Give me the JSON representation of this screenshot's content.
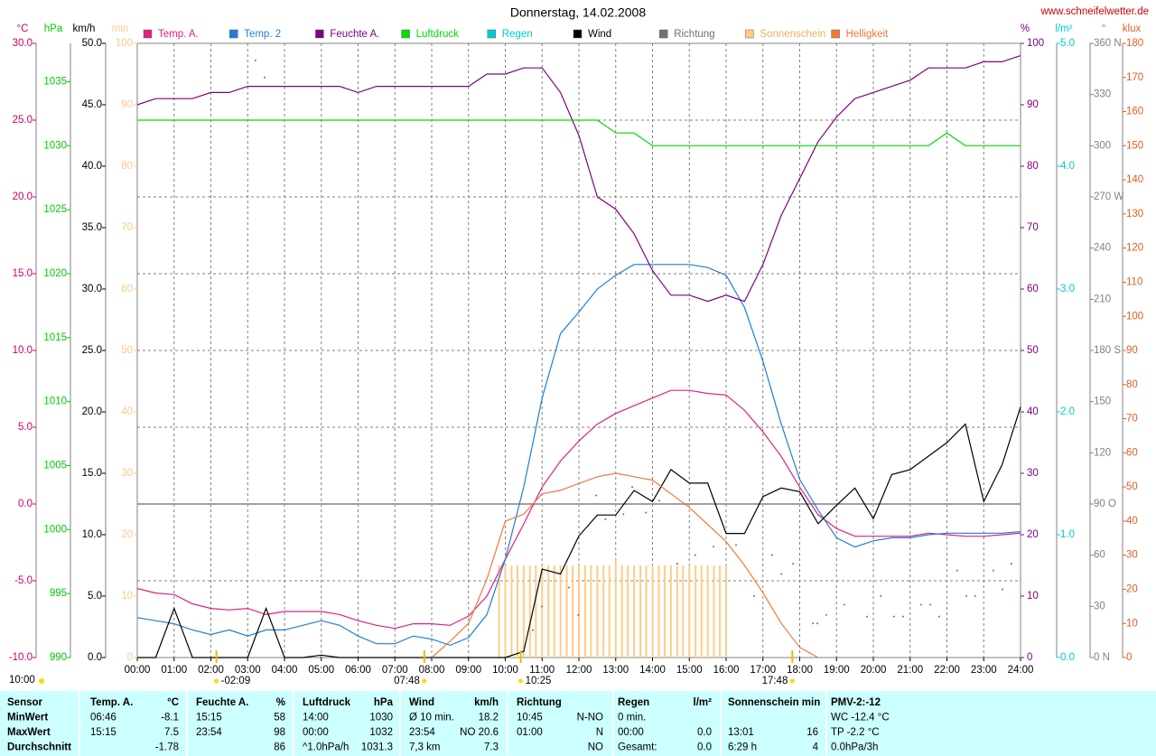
{
  "chart_data": {
    "type": "line",
    "title": "Donnerstag, 14.02.2008",
    "source": "www.schneifelwetter.de",
    "corner_label": "10:00",
    "xlim": [
      0,
      24
    ],
    "grid": true,
    "xticks": [
      {
        "value": 0,
        "label": "00:00"
      },
      {
        "value": 1,
        "label": "01:00"
      },
      {
        "value": 2,
        "label": "02:00"
      },
      {
        "value": 3,
        "label": "03:00"
      },
      {
        "value": 4,
        "label": "04:00"
      },
      {
        "value": 5,
        "label": "05:00"
      },
      {
        "value": 6,
        "label": "06:00"
      },
      {
        "value": 7,
        "label": "07:00"
      },
      {
        "value": 8,
        "label": "08:00"
      },
      {
        "value": 9,
        "label": "09:00"
      },
      {
        "value": 10,
        "label": "10:00"
      },
      {
        "value": 11,
        "label": "11:00"
      },
      {
        "value": 12,
        "label": "12:00"
      },
      {
        "value": 13,
        "label": "13:00"
      },
      {
        "value": 14,
        "label": "14:00"
      },
      {
        "value": 15,
        "label": "15:00"
      },
      {
        "value": 16,
        "label": "16:00"
      },
      {
        "value": 17,
        "label": "17:00"
      },
      {
        "value": 18,
        "label": "18:00"
      },
      {
        "value": 19,
        "label": "19:00"
      },
      {
        "value": 20,
        "label": "20:00"
      },
      {
        "value": 21,
        "label": "21:00"
      },
      {
        "value": 22,
        "label": "22:00"
      },
      {
        "value": 23,
        "label": "23:00"
      },
      {
        "value": 24,
        "label": "24:00"
      }
    ],
    "x": [
      0,
      0.5,
      1,
      1.5,
      2,
      2.5,
      3,
      3.5,
      4,
      4.5,
      5,
      5.5,
      6,
      6.5,
      7,
      7.5,
      8,
      8.5,
      9,
      9.5,
      10,
      10.5,
      11,
      11.5,
      12,
      12.5,
      13,
      13.5,
      14,
      14.5,
      15,
      15.5,
      16,
      16.5,
      17,
      17.5,
      18,
      18.5,
      19,
      19.5,
      20,
      20.5,
      21,
      21.5,
      22,
      22.5,
      23,
      23.5,
      24
    ],
    "axes": [
      {
        "title": "°C",
        "color": "#cc0066",
        "ylim": [
          -10,
          30
        ],
        "yticks": [
          {
            "value": -10,
            "label": "-10.0"
          },
          {
            "value": -5,
            "label": "-5.0"
          },
          {
            "value": 0,
            "label": "0.0"
          },
          {
            "value": 5,
            "label": "5.0"
          },
          {
            "value": 10,
            "label": "10.0"
          },
          {
            "value": 15,
            "label": "15.0"
          },
          {
            "value": 20,
            "label": "20.0"
          },
          {
            "value": 25,
            "label": "25.0"
          },
          {
            "value": 30,
            "label": "30.0"
          }
        ]
      },
      {
        "title": "hPa",
        "color": "#00cc00",
        "ylim": [
          990,
          1038
        ],
        "yticks": [
          990,
          995,
          1000,
          1005,
          1010,
          1015,
          1020,
          1025,
          1030,
          1035
        ]
      },
      {
        "title": "km/h",
        "color": "#000000",
        "ylim": [
          0,
          50
        ],
        "yticks": [
          {
            "value": 0,
            "label": "0.0"
          },
          {
            "value": 5,
            "label": "5.0"
          },
          {
            "value": 10,
            "label": "10.0"
          },
          {
            "value": 15,
            "label": "15.0"
          },
          {
            "value": 20,
            "label": "20.0"
          },
          {
            "value": 25,
            "label": "25.0"
          },
          {
            "value": 30,
            "label": "30.0"
          },
          {
            "value": 35,
            "label": "35.0"
          },
          {
            "value": 40,
            "label": "40.0"
          },
          {
            "value": 45,
            "label": "45.0"
          },
          {
            "value": 50,
            "label": "50.0"
          }
        ]
      },
      {
        "title": "min",
        "color": "#ffc890",
        "ylim": [
          0,
          100
        ],
        "yticks": [
          0,
          10,
          20,
          30,
          40,
          50,
          60,
          70,
          80,
          90,
          100
        ]
      },
      {
        "title": "%",
        "color": "#800080",
        "ylim": [
          0,
          100
        ],
        "yticks": [
          0,
          10,
          20,
          30,
          40,
          50,
          60,
          70,
          80,
          90,
          100
        ]
      },
      {
        "title": "l/m²",
        "color": "#00cccc",
        "ylim": [
          0,
          5
        ],
        "yticks": [
          {
            "value": 0,
            "label": "0.0"
          },
          {
            "value": 1,
            "label": "1.0"
          },
          {
            "value": 2,
            "label": "2.0"
          },
          {
            "value": 3,
            "label": "3.0"
          },
          {
            "value": 4,
            "label": "4.0"
          },
          {
            "value": 5,
            "label": "5.0"
          }
        ]
      },
      {
        "title": "°",
        "color": "#808080",
        "ylim": [
          0,
          360
        ],
        "yticks": [
          {
            "value": 0,
            "label": "0 N"
          },
          30,
          60,
          {
            "value": 90,
            "label": "90 O"
          },
          120,
          150,
          {
            "value": 180,
            "label": "180 S"
          },
          210,
          240,
          {
            "value": 270,
            "label": "270 W"
          },
          300,
          330,
          {
            "value": 360,
            "label": "360 N"
          }
        ]
      },
      {
        "title": "klux",
        "color": "#e06020",
        "ylim": [
          0,
          180
        ],
        "yticks": [
          0,
          10,
          20,
          30,
          40,
          50,
          60,
          70,
          80,
          90,
          100,
          110,
          120,
          130,
          140,
          150,
          160,
          170,
          180
        ]
      }
    ],
    "series": [
      {
        "name": "Temp. A.",
        "color": "#e0207f",
        "type": "line",
        "axis": 0,
        "values": [
          -5.5,
          -5.8,
          -5.9,
          -6.5,
          -6.8,
          -6.9,
          -6.8,
          -7.2,
          -7.0,
          -7.0,
          -7.0,
          -7.2,
          -7.6,
          -7.9,
          -8.1,
          -7.8,
          -7.8,
          -7.9,
          -7.3,
          -6.0,
          -3.6,
          -1.3,
          1.1,
          2.8,
          4.1,
          5.2,
          5.9,
          6.4,
          6.9,
          7.4,
          7.4,
          7.2,
          7.1,
          6.1,
          4.7,
          3.1,
          1.1,
          -0.7,
          -1.6,
          -2.1,
          -2.1,
          -2.1,
          -2.1,
          -1.9,
          -2.0,
          -2.1,
          -2.1,
          -2.0,
          -1.9
        ]
      },
      {
        "name": "Temp. 2",
        "color": "#1e7fd8",
        "type": "line",
        "axis": 0,
        "values": [
          -7.4,
          -7.6,
          -7.8,
          -8.2,
          -8.5,
          -8.2,
          -8.6,
          -8.2,
          -8.2,
          -7.9,
          -7.6,
          -7.9,
          -8.6,
          -9.1,
          -9.1,
          -8.6,
          -8.8,
          -9.2,
          -8.7,
          -7.2,
          -3.6,
          1.1,
          6.9,
          11.1,
          12.5,
          14.0,
          14.9,
          15.6,
          15.6,
          15.6,
          15.6,
          15.4,
          14.9,
          12.8,
          9.3,
          5.2,
          1.6,
          -0.4,
          -2.2,
          -2.8,
          -2.4,
          -2.2,
          -2.2,
          -2.0,
          -1.9,
          -1.9,
          -1.9,
          -1.9,
          -1.8
        ]
      },
      {
        "name": "Feuchte A.",
        "color": "#800080",
        "type": "line",
        "axis": 4,
        "values": [
          90,
          91,
          91,
          91,
          92,
          92,
          93,
          93,
          93,
          93,
          93,
          93,
          92,
          93,
          93,
          93,
          93,
          93,
          93,
          95,
          95,
          96,
          96,
          92,
          85,
          75,
          73,
          69,
          63,
          59,
          59,
          58,
          59,
          58,
          64,
          72,
          78,
          84,
          88,
          91,
          92,
          93,
          94,
          96,
          96,
          96,
          97,
          97,
          98
        ]
      },
      {
        "name": "Luftdruck",
        "color": "#00dd00",
        "type": "line",
        "axis": 1,
        "values": [
          1032,
          1032,
          1032,
          1032,
          1032,
          1032,
          1032,
          1032,
          1032,
          1032,
          1032,
          1032,
          1032,
          1032,
          1032,
          1032,
          1032,
          1032,
          1032,
          1032,
          1032,
          1032,
          1032,
          1032,
          1032,
          1032,
          1031,
          1031,
          1030,
          1030,
          1030,
          1030,
          1030,
          1030,
          1030,
          1030,
          1030,
          1030,
          1030,
          1030,
          1030,
          1030,
          1030,
          1030,
          1031,
          1030,
          1030,
          1030,
          1030
        ]
      },
      {
        "name": "Regen",
        "color": "#00cccc",
        "type": "line",
        "axis": 5
      },
      {
        "name": "Wind",
        "color": "#000000",
        "type": "line",
        "axis": 2,
        "values": [
          0,
          0,
          4.0,
          0,
          0,
          0,
          0,
          4.0,
          0,
          0,
          0.2,
          0,
          0,
          0,
          0,
          0,
          0,
          0,
          0,
          0,
          0,
          0.5,
          7.2,
          6.8,
          9.9,
          11.6,
          11.6,
          13.6,
          12.7,
          15.3,
          14.2,
          14.2,
          10.1,
          10.1,
          13.1,
          13.8,
          13.5,
          10.9,
          12.4,
          13.8,
          11.3,
          14.9,
          15.3,
          16.4,
          17.5,
          19.0,
          12.7,
          15.7,
          20.4
        ]
      },
      {
        "name": "Richtung",
        "color": "#707070",
        "type": "scatter",
        "axis": 6,
        "x": [
          3.21,
          3.46,
          4.98,
          10.75,
          10.99,
          11.73,
          11.98,
          12.47,
          12.72,
          13.21,
          13.45,
          13.82,
          14.18,
          14.67,
          15.16,
          15.66,
          16.27,
          16.76,
          17.25,
          17.5,
          17.82,
          18.36,
          18.48,
          18.72,
          19.21,
          19.83,
          20.2,
          20.56,
          20.81,
          21.3,
          21.55,
          21.79,
          22.28,
          22.53,
          22.77,
          23.26,
          23.51,
          23.75
        ],
        "values": [
          350,
          340,
          0,
          16,
          30,
          41,
          25,
          95,
          81,
          84,
          100,
          85,
          92,
          55,
          60,
          65,
          66,
          36,
          60,
          49,
          55,
          20,
          20,
          25,
          31,
          24,
          36,
          24,
          24,
          31,
          31,
          24,
          51,
          36,
          36,
          51,
          40,
          55
        ]
      },
      {
        "name": "Sonnenschein",
        "color": "#ffcc88",
        "type": "bar",
        "axis": 3,
        "x": [
          9.83,
          10,
          10.17,
          10.33,
          10.5,
          10.67,
          10.83,
          11,
          11.17,
          11.33,
          11.5,
          11.67,
          11.83,
          12,
          12.17,
          12.33,
          12.5,
          12.67,
          12.83,
          13,
          13.17,
          13.33,
          13.5,
          13.67,
          13.83,
          14,
          14.17,
          14.33,
          14.5,
          14.67,
          14.83,
          15,
          15.17,
          15.33,
          15.5,
          15.67,
          15.83,
          16
        ],
        "values": [
          15,
          15,
          15,
          15,
          15,
          15,
          15,
          15,
          15,
          15,
          15,
          15,
          15,
          15,
          15,
          15,
          15,
          15,
          15,
          16,
          15,
          15,
          15,
          15,
          15,
          15,
          15,
          15,
          15,
          15,
          15,
          15,
          15,
          15,
          15,
          15,
          15,
          15
        ]
      },
      {
        "name": "Helligkeit",
        "color": "#f07838",
        "type": "line",
        "axis": 7,
        "values": [
          null,
          null,
          null,
          null,
          null,
          null,
          null,
          null,
          null,
          null,
          null,
          null,
          null,
          null,
          null,
          null,
          0,
          4.8,
          10,
          23,
          40,
          42,
          48,
          49,
          51,
          53,
          54,
          53,
          52,
          48,
          44,
          39,
          34,
          27,
          19,
          10,
          3,
          0,
          null,
          null,
          null,
          null,
          null,
          null,
          null,
          null,
          null,
          null,
          null
        ]
      }
    ],
    "annotations": [
      {
        "x": 2.15,
        "label": "-02:09"
      },
      {
        "x": 7.8,
        "label": "07:48"
      },
      {
        "x": 10.42,
        "label": "10:25"
      },
      {
        "x": 17.8,
        "label": "17:48"
      }
    ]
  },
  "summary_table": {
    "rows": [
      [
        "Sensor",
        "Temp. A.",
        "°C",
        "Feuchte A.",
        "%",
        "Luftdruck",
        "hPa",
        "Wind",
        "km/h",
        "Richtung",
        null,
        "Regen",
        "l/m²",
        "Sonnenschein min",
        null,
        "PMV-2:-12"
      ],
      [
        "MinWert",
        "06:46",
        "-8.1",
        "15:15",
        "58",
        "14:00",
        "1030",
        "Ø 10 min.",
        "18.2",
        "10:45",
        "N-NO",
        "0 min.",
        null,
        null,
        null,
        "WC -12.4 °C"
      ],
      [
        "MaxWert",
        "15:15",
        "7.5",
        "23:54",
        "98",
        "00:00",
        "1032",
        "23:54",
        "NO 20.6",
        "01:00",
        "N",
        "00:00",
        "0.0",
        "13:01",
        "16",
        "TP -2.2 °C"
      ],
      [
        "Durchschnitt",
        null,
        "-1.78",
        null,
        "86",
        "^1.0hPa/h",
        "1031.3",
        "7,3 km",
        "7.3",
        null,
        "NO",
        "Gesamt:",
        "0.0",
        "6:29 h",
        "4",
        "0.0hPa/3h"
      ]
    ]
  }
}
